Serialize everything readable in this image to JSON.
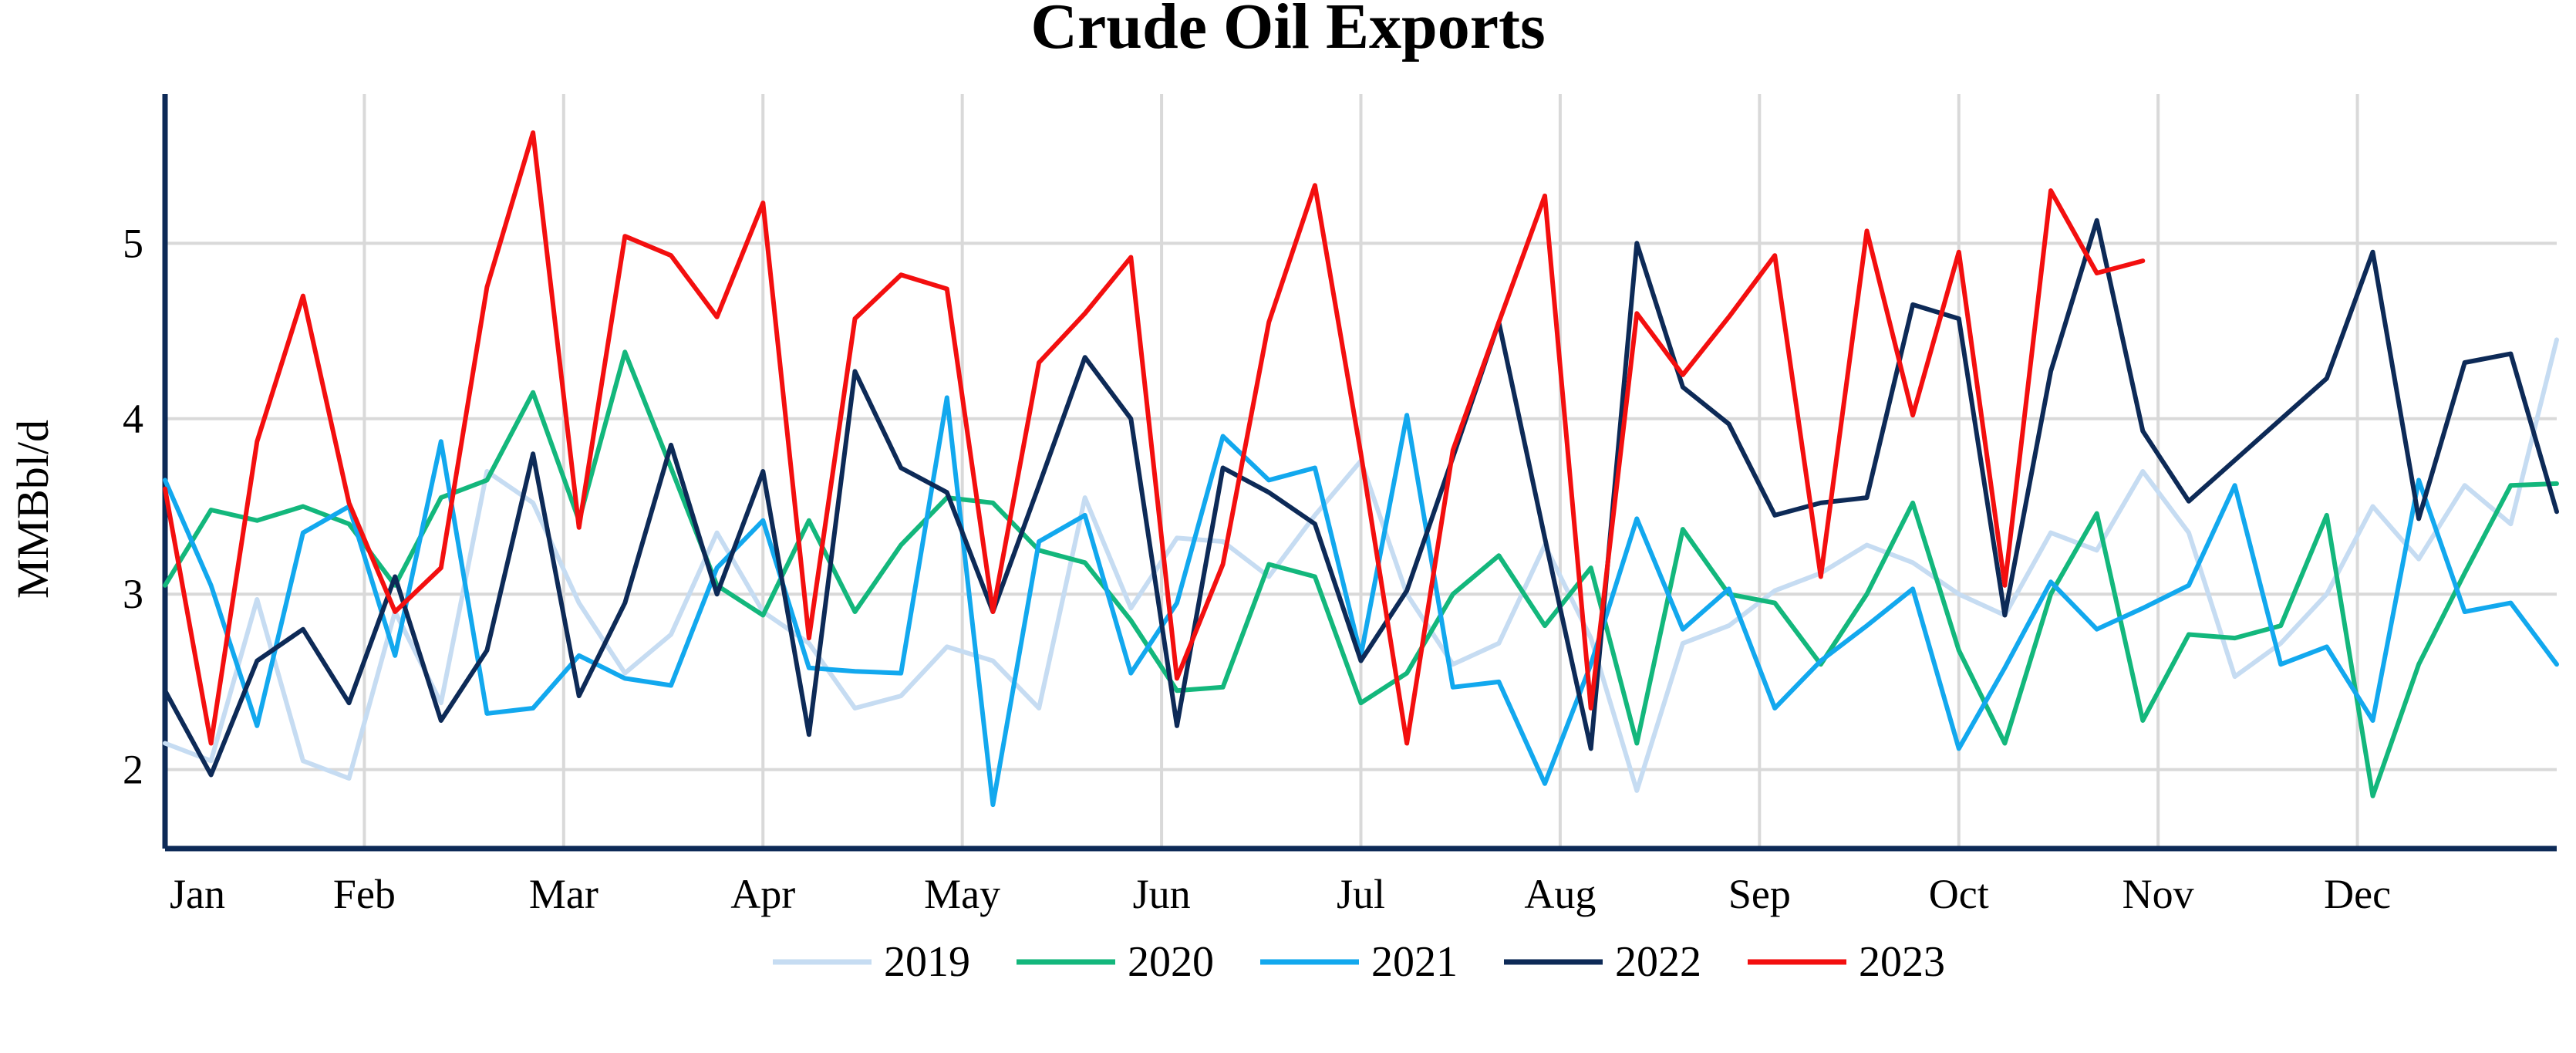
{
  "chart_data": {
    "type": "line",
    "title": "Crude Oil Exports",
    "xlabel": "",
    "ylabel": "MMBbl/d",
    "x_tick_labels": [
      "Jan",
      "Feb",
      "Mar",
      "Apr",
      "May",
      "Jun",
      "Jul",
      "Aug",
      "Sep",
      "Oct",
      "Nov",
      "Dec"
    ],
    "y_ticks": [
      2,
      3,
      4,
      5
    ],
    "ylim": [
      1.55,
      5.85
    ],
    "xlim_weeks": [
      0,
      52
    ],
    "grid": true,
    "legend_position": "bottom",
    "series": [
      {
        "name": "2019",
        "color": "#c6dcf2",
        "week": [
          0,
          1,
          2,
          3,
          4,
          5,
          6,
          7,
          8,
          9,
          10,
          11,
          12,
          13,
          14,
          15,
          16,
          17,
          18,
          19,
          20,
          21,
          22,
          23,
          24,
          25,
          26,
          27,
          28,
          29,
          30,
          31,
          32,
          33,
          34,
          35,
          36,
          37,
          38,
          39,
          40,
          41,
          42,
          43,
          44,
          45,
          46,
          47,
          48,
          49,
          50,
          51,
          52
        ],
        "values": [
          2.15,
          2.05,
          2.97,
          2.05,
          1.95,
          2.9,
          2.38,
          3.7,
          3.52,
          2.95,
          2.55,
          2.77,
          3.35,
          2.9,
          2.72,
          2.35,
          2.42,
          2.7,
          2.62,
          2.35,
          3.55,
          2.92,
          3.32,
          3.3,
          3.1,
          3.45,
          3.76,
          3.0,
          2.6,
          2.72,
          3.28,
          2.75,
          1.88,
          2.72,
          2.82,
          3.02,
          3.12,
          3.28,
          3.18,
          3.0,
          2.88,
          3.35,
          3.25,
          3.7,
          3.35,
          2.53,
          2.72,
          3.0,
          3.5,
          3.2,
          3.62,
          3.4,
          4.45
        ]
      },
      {
        "name": "2020",
        "color": "#13b77c",
        "week": [
          0,
          1,
          2,
          3,
          4,
          5,
          6,
          7,
          8,
          9,
          10,
          11,
          12,
          13,
          14,
          15,
          16,
          17,
          18,
          19,
          20,
          21,
          22,
          23,
          24,
          25,
          26,
          27,
          28,
          29,
          30,
          31,
          32,
          33,
          34,
          35,
          36,
          37,
          38,
          39,
          40,
          41,
          42,
          43,
          44,
          45,
          46,
          47,
          48,
          49,
          50,
          51,
          52
        ],
        "values": [
          3.05,
          3.48,
          3.42,
          3.5,
          3.4,
          3.05,
          3.55,
          3.65,
          4.15,
          3.42,
          4.38,
          3.72,
          3.05,
          2.88,
          3.42,
          2.9,
          3.28,
          3.55,
          3.52,
          3.25,
          3.18,
          2.85,
          2.45,
          2.47,
          3.17,
          3.1,
          2.38,
          2.55,
          3.0,
          3.22,
          2.82,
          3.15,
          2.15,
          3.37,
          3.0,
          2.95,
          2.6,
          3.0,
          3.52,
          2.68,
          2.15,
          3.0,
          3.46,
          2.28,
          2.77,
          2.75,
          2.82,
          3.45,
          1.85,
          2.6,
          3.12,
          3.62,
          3.63
        ]
      },
      {
        "name": "2021",
        "color": "#12a8ee",
        "week": [
          0,
          1,
          2,
          3,
          4,
          5,
          6,
          7,
          8,
          9,
          10,
          11,
          12,
          13,
          14,
          15,
          16,
          17,
          18,
          19,
          20,
          21,
          22,
          23,
          24,
          25,
          26,
          27,
          28,
          29,
          30,
          31,
          32,
          33,
          34,
          35,
          36,
          37,
          38,
          39,
          40,
          41,
          42,
          43,
          44,
          45,
          46,
          47,
          48,
          49,
          50,
          51,
          52
        ],
        "values": [
          3.65,
          3.05,
          2.25,
          3.35,
          3.5,
          2.65,
          3.87,
          2.32,
          2.35,
          2.65,
          2.52,
          2.48,
          3.15,
          3.42,
          2.58,
          2.56,
          2.55,
          4.12,
          1.8,
          3.3,
          3.45,
          2.55,
          2.95,
          3.9,
          3.65,
          3.72,
          2.65,
          4.02,
          2.47,
          2.5,
          1.92,
          2.6,
          3.43,
          2.8,
          3.03,
          2.35,
          2.62,
          2.82,
          3.03,
          2.12,
          2.58,
          3.07,
          2.8,
          2.92,
          3.05,
          3.62,
          2.6,
          2.7,
          2.28,
          3.65,
          2.9,
          2.95,
          2.6
        ]
      },
      {
        "name": "2022",
        "color": "#0d2a57",
        "week": [
          0,
          1,
          2,
          3,
          4,
          5,
          6,
          7,
          8,
          9,
          10,
          11,
          12,
          13,
          14,
          15,
          16,
          17,
          18,
          19,
          20,
          21,
          22,
          23,
          24,
          25,
          26,
          27,
          28,
          29,
          30,
          31,
          32,
          33,
          34,
          35,
          36,
          37,
          38,
          39,
          40,
          41,
          42,
          43,
          44,
          47,
          48,
          49,
          50,
          51,
          52
        ],
        "values": [
          2.45,
          1.97,
          2.62,
          2.8,
          2.38,
          3.1,
          2.28,
          2.68,
          3.8,
          2.42,
          2.95,
          3.85,
          3.0,
          3.7,
          2.2,
          4.27,
          3.72,
          3.58,
          2.9,
          3.62,
          4.35,
          4.0,
          2.25,
          3.72,
          3.58,
          3.4,
          2.62,
          3.02,
          3.78,
          4.55,
          3.32,
          2.12,
          5.0,
          4.18,
          3.97,
          3.45,
          3.52,
          3.55,
          4.65,
          4.57,
          2.88,
          4.27,
          5.13,
          3.93,
          3.53,
          4.23,
          4.95,
          3.43,
          4.32,
          4.37,
          3.47
        ]
      },
      {
        "name": "2023",
        "color": "#f30f0f",
        "week": [
          0,
          1,
          2,
          3,
          4,
          5,
          6,
          7,
          8,
          9,
          10,
          11,
          12,
          13,
          14,
          15,
          16,
          17,
          18,
          19,
          20,
          21,
          22,
          23,
          24,
          25,
          26,
          27,
          28,
          29,
          30,
          31,
          32,
          33,
          34,
          35,
          36,
          37,
          38,
          39,
          40,
          41,
          42,
          43
        ],
        "values": [
          3.6,
          2.15,
          3.87,
          4.7,
          3.52,
          2.9,
          3.15,
          4.75,
          5.63,
          3.38,
          5.04,
          4.93,
          4.58,
          5.23,
          2.75,
          4.57,
          4.82,
          4.74,
          2.9,
          4.32,
          4.6,
          4.92,
          2.52,
          3.17,
          4.55,
          5.33,
          3.8,
          2.15,
          3.82,
          4.55,
          5.27,
          2.35,
          4.6,
          4.25,
          4.58,
          4.93,
          3.1,
          5.07,
          4.02,
          4.95,
          3.05,
          5.3,
          4.83,
          4.9
        ]
      }
    ]
  }
}
